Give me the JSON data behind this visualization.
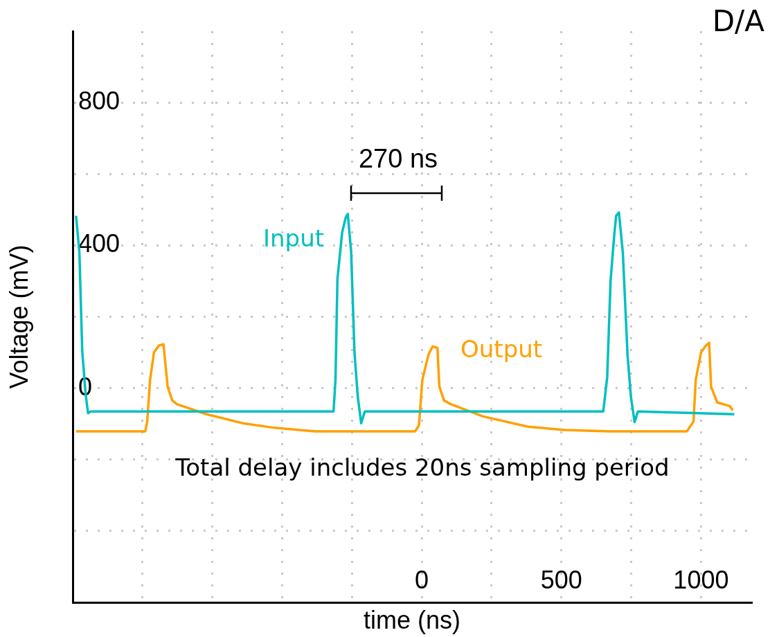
{
  "chart_data": {
    "type": "line",
    "title": "D/A",
    "xlabel": "time (ns)",
    "ylabel": "Voltage (mV)",
    "xlim": [
      -1250,
      1180
    ],
    "ylim": [
      -600,
      1000
    ],
    "xticks": [
      {
        "value": -1000,
        "label": null
      },
      {
        "value": -750,
        "label": null
      },
      {
        "value": -500,
        "label": null
      },
      {
        "value": -250,
        "label": null
      },
      0,
      {
        "value": 250,
        "label": null
      },
      500,
      {
        "value": 750,
        "label": null
      },
      1000
    ],
    "yticks": [
      {
        "value": -400,
        "label": null
      },
      {
        "value": -200,
        "label": null
      },
      0,
      {
        "value": 200,
        "label": null
      },
      400,
      {
        "value": 600,
        "label": null
      },
      800
    ],
    "grid": true,
    "legend": false,
    "marker": "none",
    "line_style": "solid",
    "series": [
      {
        "name": "Input",
        "color": "#00bfbf",
        "x": [
          -1238,
          -1226,
          -1216,
          -1204,
          -1195,
          -1185,
          -316,
          -309,
          -302,
          -285,
          -272,
          -265,
          -253,
          -241,
          -229,
          -217,
          -204,
          650,
          664,
          676,
          689,
          696,
          706,
          720,
          737,
          749,
          762,
          774,
          1119
        ],
        "values": [
          483,
          379,
          106,
          -15,
          -70,
          -65,
          -65,
          23,
          306,
          437,
          479,
          488,
          383,
          100,
          -25,
          -98,
          -65,
          -65,
          31,
          300,
          427,
          483,
          492,
          379,
          90,
          -25,
          -95,
          -65,
          -73
        ]
      },
      {
        "name": "Output",
        "color": "#ffa000",
        "x": [
          -1238,
          -990,
          -983,
          -973,
          -959,
          -942,
          -925,
          -910,
          -893,
          -876,
          -771,
          -642,
          -528,
          -382,
          -24,
          -10,
          2,
          24,
          39,
          56,
          63,
          80,
          105,
          219,
          380,
          511,
          672,
          949,
          973,
          981,
          1000,
          1017,
          1029,
          1036,
          1058,
          1102,
          1114
        ],
        "values": [
          -121,
          -121,
          -92,
          23,
          100,
          119,
          123,
          4,
          -35,
          -45,
          -73,
          -98,
          -111,
          -121,
          -121,
          -104,
          23,
          94,
          117,
          113,
          4,
          -35,
          -45,
          -79,
          -108,
          -117,
          -121,
          -121,
          -94,
          23,
          100,
          119,
          127,
          4,
          -40,
          -50,
          -62
        ]
      }
    ],
    "annotations": [
      "270 ns",
      "Total delay includes 20ns sampling period"
    ]
  }
}
